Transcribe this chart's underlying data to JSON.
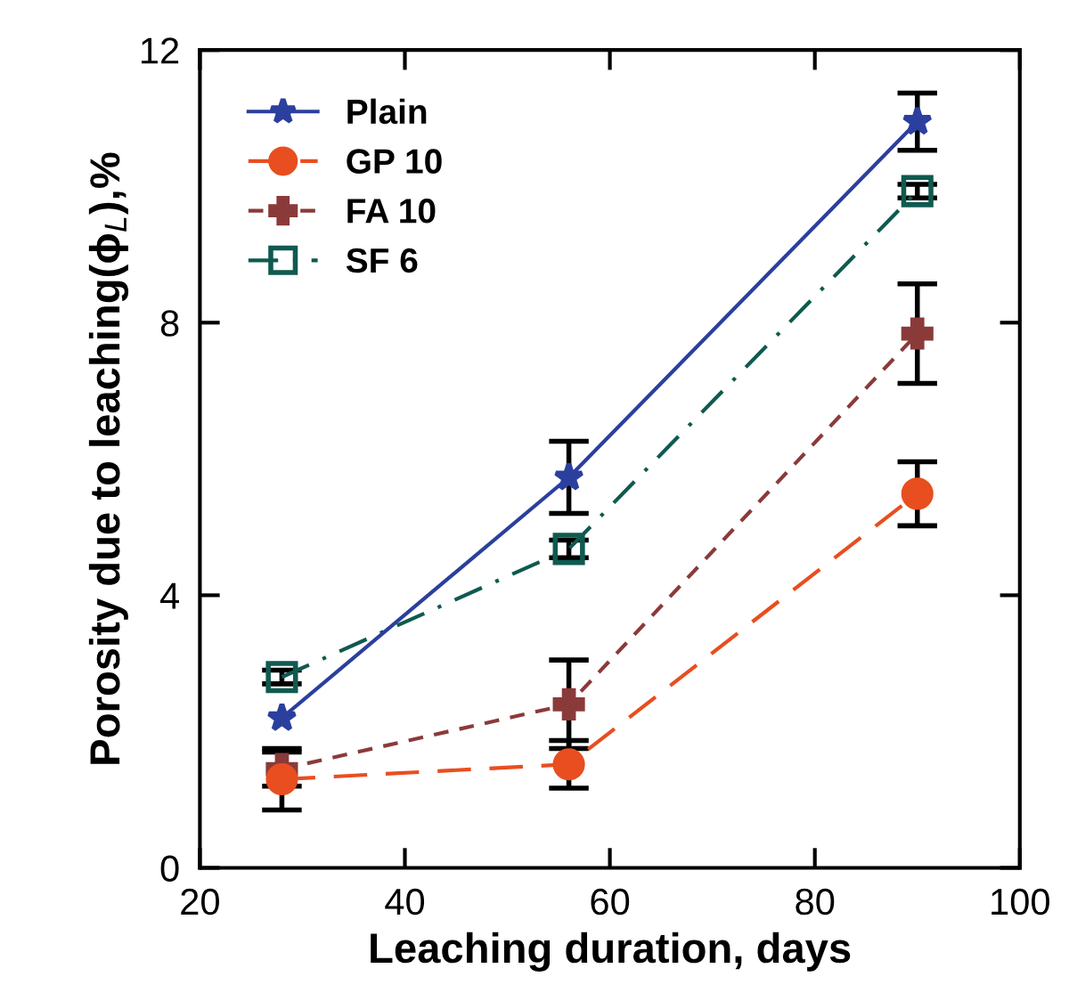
{
  "chart_data": {
    "type": "line",
    "xlabel": "Leaching duration, days",
    "ylabel": "Porosity due to leaching(ϕ$_{L}$),%",
    "x": [
      28,
      56,
      90
    ],
    "xlim": [
      20,
      100
    ],
    "xticks": [
      20,
      40,
      60,
      80,
      100
    ],
    "ylim": [
      0,
      12
    ],
    "yticks": [
      0,
      4,
      8,
      12
    ],
    "grid": false,
    "legend": "top left",
    "series": [
      {
        "name": "Plain",
        "color": "#2b3f9e",
        "values": [
          2.2,
          5.73,
          10.95
        ],
        "errors": [
          null,
          0.53,
          0.42
        ],
        "marker": "star",
        "line_style": "solid"
      },
      {
        "name": "GP 10",
        "color": "#e84e1f",
        "values": [
          1.3,
          1.52,
          5.49
        ],
        "errors": [
          0.45,
          0.35,
          0.47
        ],
        "marker": "circle",
        "line_style": "longdash"
      },
      {
        "name": "FA 10",
        "color": "#8b3a3a",
        "values": [
          1.45,
          2.4,
          7.84
        ],
        "errors": [
          0.25,
          0.65,
          0.73
        ],
        "marker": "cross",
        "line_style": "dashed"
      },
      {
        "name": "SF 6",
        "color": "#0f5a4f",
        "values": [
          2.8,
          4.68,
          9.93
        ],
        "errors": [
          0.1,
          0.13,
          0.1
        ],
        "marker": "square",
        "line_style": "dashdot"
      }
    ]
  }
}
